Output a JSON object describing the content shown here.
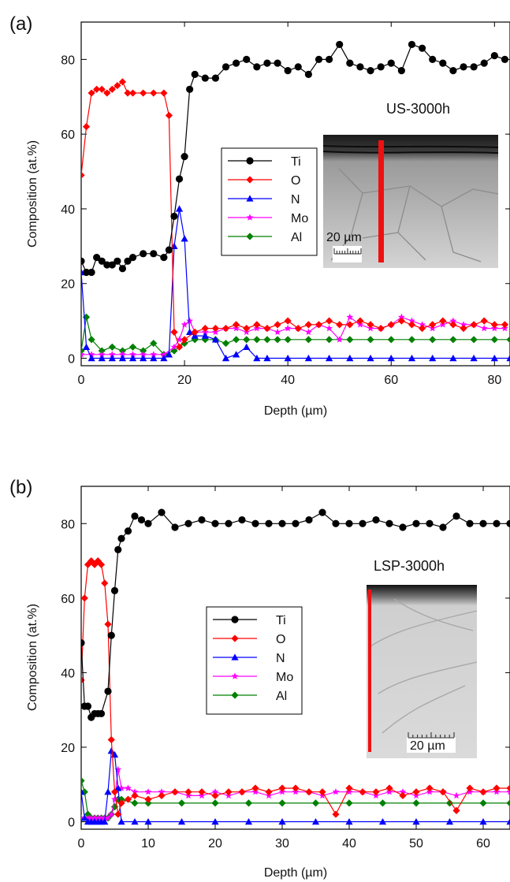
{
  "panels": [
    {
      "panel_label": "(a)",
      "sample_label": "US-3000h",
      "inset_scale_label": "20 µm",
      "chart_data": {
        "type": "line",
        "xlabel": "Depth (µm)",
        "ylabel": "Composition (at.%)",
        "xlim": [
          0,
          83
        ],
        "ylim": [
          -2,
          90
        ],
        "x_ticks": [
          0,
          20,
          40,
          60,
          80
        ],
        "y_ticks": [
          0,
          20,
          40,
          60,
          80
        ],
        "legend_position": "middle-left, inside plot",
        "series": [
          {
            "name": "Ti",
            "color": "#000000",
            "marker": "circle",
            "x": [
              0,
              1,
              2,
              3,
              4,
              5,
              6,
              7,
              8,
              9,
              10,
              12,
              14,
              16,
              17,
              18,
              19,
              20,
              21,
              22,
              24,
              26,
              28,
              30,
              32,
              34,
              36,
              38,
              40,
              42,
              44,
              46,
              48,
              50,
              52,
              54,
              56,
              58,
              60,
              62,
              64,
              66,
              68,
              70,
              72,
              74,
              76,
              78,
              80,
              82
            ],
            "y": [
              26,
              23,
              23,
              27,
              26,
              25,
              25,
              26,
              24,
              26,
              27,
              28,
              28,
              27,
              29,
              38,
              48,
              54,
              72,
              76,
              75,
              75,
              78,
              79,
              80,
              78,
              79,
              79,
              77,
              78,
              76,
              80,
              80,
              84,
              79,
              78,
              77,
              78,
              79,
              77,
              84,
              83,
              80,
              79,
              77,
              78,
              78,
              79,
              81,
              80
            ]
          },
          {
            "name": "O",
            "color": "#ff0000",
            "marker": "diamond",
            "x": [
              0,
              1,
              2,
              3,
              4,
              5,
              6,
              7,
              8,
              9,
              10,
              12,
              14,
              16,
              17,
              18,
              19,
              20,
              22,
              24,
              26,
              28,
              30,
              32,
              34,
              36,
              38,
              40,
              42,
              44,
              46,
              48,
              50,
              52,
              54,
              56,
              58,
              60,
              62,
              64,
              66,
              68,
              70,
              72,
              74,
              76,
              78,
              80,
              82
            ],
            "y": [
              49,
              62,
              71,
              72,
              72,
              71,
              72,
              73,
              74,
              71,
              71,
              71,
              71,
              71,
              65,
              7,
              3,
              5,
              7,
              8,
              8,
              8,
              9,
              8,
              9,
              8,
              9,
              10,
              8,
              9,
              9,
              10,
              9,
              9,
              10,
              9,
              8,
              9,
              10,
              9,
              8,
              9,
              10,
              9,
              8,
              9,
              10,
              9,
              9
            ]
          },
          {
            "name": "N",
            "color": "#0000ff",
            "marker": "triangle",
            "x": [
              0,
              1,
              2,
              4,
              6,
              8,
              10,
              12,
              14,
              16,
              17,
              18,
              19,
              20,
              21,
              22,
              24,
              26,
              28,
              30,
              32,
              34,
              36,
              40,
              44,
              48,
              52,
              56,
              60,
              64,
              68,
              72,
              76,
              80,
              83
            ],
            "y": [
              23,
              3,
              0,
              0,
              0,
              0,
              0,
              0,
              0,
              0,
              1,
              30,
              40,
              32,
              7,
              6,
              6,
              5,
              0,
              1,
              3,
              0,
              0,
              0,
              0,
              0,
              0,
              0,
              0,
              0,
              0,
              0,
              0,
              0,
              0
            ]
          },
          {
            "name": "Mo",
            "color": "#ff00ff",
            "marker": "star",
            "x": [
              0,
              2,
              4,
              6,
              8,
              10,
              12,
              14,
              16,
              18,
              19,
              20,
              21,
              22,
              24,
              26,
              28,
              30,
              32,
              34,
              36,
              38,
              40,
              42,
              44,
              46,
              48,
              50,
              52,
              54,
              56,
              58,
              60,
              62,
              64,
              66,
              68,
              70,
              72,
              74,
              76,
              78,
              80,
              82
            ],
            "y": [
              1,
              1,
              1,
              1,
              1,
              1,
              1,
              1,
              1,
              3,
              5,
              9,
              10,
              7,
              7,
              7,
              8,
              8,
              7,
              8,
              8,
              7,
              8,
              8,
              7,
              9,
              8,
              5,
              11,
              9,
              8,
              8,
              9,
              11,
              10,
              9,
              8,
              9,
              10,
              9,
              9,
              8,
              8,
              8
            ]
          },
          {
            "name": "Al",
            "color": "#008000",
            "marker": "diamond",
            "x": [
              0,
              1,
              2,
              4,
              6,
              8,
              10,
              12,
              14,
              16,
              18,
              20,
              22,
              24,
              26,
              28,
              30,
              32,
              34,
              36,
              38,
              40,
              44,
              48,
              52,
              56,
              60,
              64,
              68,
              72,
              76,
              80,
              83
            ],
            "y": [
              2,
              11,
              5,
              2,
              3,
              2,
              3,
              2,
              4,
              1,
              2,
              4,
              5,
              5,
              5,
              4,
              5,
              5,
              5,
              5,
              5,
              5,
              5,
              5,
              5,
              5,
              5,
              5,
              5,
              5,
              5,
              5,
              5
            ]
          }
        ]
      }
    },
    {
      "panel_label": "(b)",
      "sample_label": "LSP-3000h",
      "inset_scale_label": "20 µm",
      "chart_data": {
        "type": "line",
        "xlabel": "Depth (µm)",
        "ylabel": "Composition (at.%)",
        "xlim": [
          0,
          64
        ],
        "ylim": [
          -2,
          90
        ],
        "x_ticks": [
          0,
          10,
          20,
          30,
          40,
          50,
          60
        ],
        "y_ticks": [
          0,
          20,
          40,
          60,
          80
        ],
        "legend_position": "middle-left, inside plot",
        "series": [
          {
            "name": "Ti",
            "color": "#000000",
            "marker": "circle",
            "x": [
              0,
              0.5,
              1,
              1.5,
              2,
              2.5,
              3,
              4,
              4.5,
              5,
              5.5,
              6,
              7,
              8,
              9,
              10,
              12,
              14,
              16,
              18,
              20,
              22,
              24,
              26,
              28,
              30,
              32,
              34,
              36,
              38,
              40,
              42,
              44,
              46,
              48,
              50,
              52,
              54,
              56,
              58,
              60,
              62,
              64
            ],
            "y": [
              48,
              31,
              31,
              28,
              29,
              29,
              29,
              35,
              50,
              62,
              73,
              76,
              78,
              82,
              81,
              80,
              83,
              79,
              80,
              81,
              80,
              80,
              81,
              80,
              80,
              80,
              80,
              81,
              83,
              80,
              80,
              80,
              81,
              80,
              79,
              80,
              80,
              79,
              82,
              80,
              80,
              80,
              80
            ]
          },
          {
            "name": "O",
            "color": "#ff0000",
            "marker": "diamond",
            "x": [
              0,
              0.5,
              1,
              1.5,
              2,
              2.5,
              3,
              3.5,
              4,
              4.5,
              5,
              5.5,
              6,
              7,
              8,
              10,
              12,
              14,
              16,
              18,
              20,
              22,
              24,
              26,
              28,
              30,
              32,
              34,
              36,
              38,
              40,
              42,
              44,
              46,
              48,
              50,
              52,
              54,
              56,
              58,
              60,
              62,
              64
            ],
            "y": [
              38,
              60,
              69,
              70,
              69,
              70,
              69,
              64,
              53,
              22,
              8,
              2,
              5,
              6,
              7,
              6,
              7,
              8,
              8,
              8,
              7,
              8,
              8,
              9,
              8,
              9,
              9,
              8,
              8,
              2,
              9,
              8,
              8,
              9,
              7,
              8,
              9,
              8,
              3,
              9,
              8,
              9,
              9
            ]
          },
          {
            "name": "N",
            "color": "#0000ff",
            "marker": "triangle",
            "x": [
              0,
              0.5,
              1,
              1.5,
              2,
              2.5,
              3,
              3.5,
              4,
              4.5,
              5,
              5.5,
              6,
              8,
              10,
              15,
              20,
              25,
              30,
              35,
              40,
              45,
              50,
              55,
              60,
              64
            ],
            "y": [
              8,
              1,
              0,
              0,
              0,
              0,
              0,
              0,
              8,
              19,
              18,
              9,
              0,
              0,
              0,
              0,
              0,
              0,
              0,
              0,
              0,
              0,
              0,
              0,
              0,
              0
            ]
          },
          {
            "name": "Mo",
            "color": "#ff00ff",
            "marker": "star",
            "x": [
              0,
              0.5,
              1,
              1.5,
              2,
              2.5,
              3,
              3.5,
              4,
              4.5,
              5,
              5.5,
              6,
              7,
              8,
              10,
              12,
              14,
              16,
              18,
              20,
              22,
              24,
              26,
              28,
              30,
              32,
              34,
              36,
              38,
              40,
              42,
              44,
              46,
              48,
              50,
              52,
              54,
              56,
              58,
              60,
              62,
              64
            ],
            "y": [
              1,
              1,
              1,
              1,
              1,
              1,
              1,
              1,
              1,
              2,
              6,
              14,
              9,
              9,
              8,
              8,
              8,
              8,
              7,
              7,
              8,
              7,
              8,
              8,
              7,
              8,
              8,
              8,
              7,
              8,
              8,
              8,
              7,
              8,
              8,
              7,
              8,
              8,
              7,
              8,
              8,
              8,
              8
            ]
          },
          {
            "name": "Al",
            "color": "#008000",
            "marker": "diamond",
            "x": [
              0,
              0.5,
              1,
              1.5,
              2,
              2.5,
              3,
              3.5,
              4,
              4.5,
              5,
              5.5,
              6,
              8,
              10,
              15,
              20,
              25,
              30,
              35,
              40,
              45,
              50,
              55,
              60,
              64
            ],
            "y": [
              11,
              8,
              2,
              1,
              1,
              1,
              1,
              1,
              1,
              2,
              4,
              6,
              6,
              5,
              5,
              5,
              5,
              5,
              5,
              5,
              5,
              5,
              5,
              5,
              5,
              5
            ]
          }
        ]
      }
    }
  ]
}
